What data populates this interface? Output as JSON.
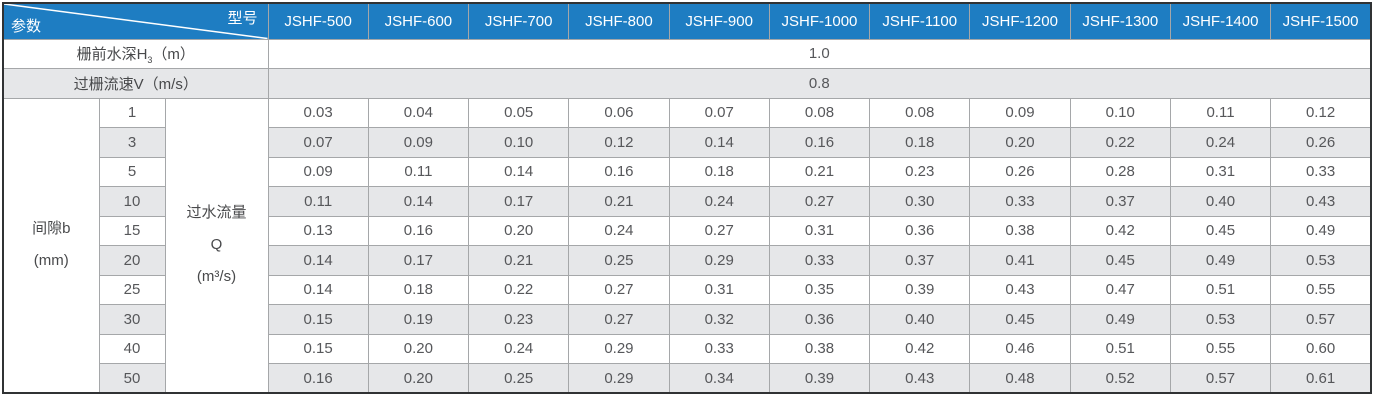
{
  "header": {
    "param_label": "参数",
    "model_label": "型号",
    "models": [
      "JSHF-500",
      "JSHF-600",
      "JSHF-700",
      "JSHF-800",
      "JSHF-900",
      "JSHF-1000",
      "JSHF-1100",
      "JSHF-1200",
      "JSHF-1300",
      "JSHF-1400",
      "JSHF-1500"
    ]
  },
  "colors": {
    "header_blue": "#1e7dc2",
    "stripe_gray": "#e6e7e9",
    "border_inner": "#a5a7a9",
    "border_outer": "#303234",
    "text_gray": "#56575a"
  },
  "table": {
    "depth_row": {
      "label_pre": "栅前水深H",
      "label_sub": "3",
      "label_post": "（m）",
      "value": "1.0"
    },
    "velocity_row": {
      "label": "过栅流速V（m/s）",
      "value": "0.8"
    },
    "gap_label": {
      "line1": "间隙b",
      "line2": "(mm)"
    },
    "flow_label": {
      "line1": "过水流量",
      "line2": "Q",
      "line3": "(m³/s)"
    },
    "gap_rows": [
      {
        "gap": "1",
        "values": [
          "0.03",
          "0.04",
          "0.05",
          "0.06",
          "0.07",
          "0.08",
          "0.08",
          "0.09",
          "0.10",
          "0.11",
          "0.12"
        ]
      },
      {
        "gap": "3",
        "values": [
          "0.07",
          "0.09",
          "0.10",
          "0.12",
          "0.14",
          "0.16",
          "0.18",
          "0.20",
          "0.22",
          "0.24",
          "0.26"
        ]
      },
      {
        "gap": "5",
        "values": [
          "0.09",
          "0.11",
          "0.14",
          "0.16",
          "0.18",
          "0.21",
          "0.23",
          "0.26",
          "0.28",
          "0.31",
          "0.33"
        ]
      },
      {
        "gap": "10",
        "values": [
          "0.11",
          "0.14",
          "0.17",
          "0.21",
          "0.24",
          "0.27",
          "0.30",
          "0.33",
          "0.37",
          "0.40",
          "0.43"
        ]
      },
      {
        "gap": "15",
        "values": [
          "0.13",
          "0.16",
          "0.20",
          "0.24",
          "0.27",
          "0.31",
          "0.36",
          "0.38",
          "0.42",
          "0.45",
          "0.49"
        ]
      },
      {
        "gap": "20",
        "values": [
          "0.14",
          "0.17",
          "0.21",
          "0.25",
          "0.29",
          "0.33",
          "0.37",
          "0.41",
          "0.45",
          "0.49",
          "0.53"
        ]
      },
      {
        "gap": "25",
        "values": [
          "0.14",
          "0.18",
          "0.22",
          "0.27",
          "0.31",
          "0.35",
          "0.39",
          "0.43",
          "0.47",
          "0.51",
          "0.55"
        ]
      },
      {
        "gap": "30",
        "values": [
          "0.15",
          "0.19",
          "0.23",
          "0.27",
          "0.32",
          "0.36",
          "0.40",
          "0.45",
          "0.49",
          "0.53",
          "0.57"
        ]
      },
      {
        "gap": "40",
        "values": [
          "0.15",
          "0.20",
          "0.24",
          "0.29",
          "0.33",
          "0.38",
          "0.42",
          "0.46",
          "0.51",
          "0.55",
          "0.60"
        ]
      },
      {
        "gap": "50",
        "values": [
          "0.16",
          "0.20",
          "0.25",
          "0.29",
          "0.34",
          "0.39",
          "0.43",
          "0.48",
          "0.52",
          "0.57",
          "0.61"
        ]
      }
    ]
  }
}
